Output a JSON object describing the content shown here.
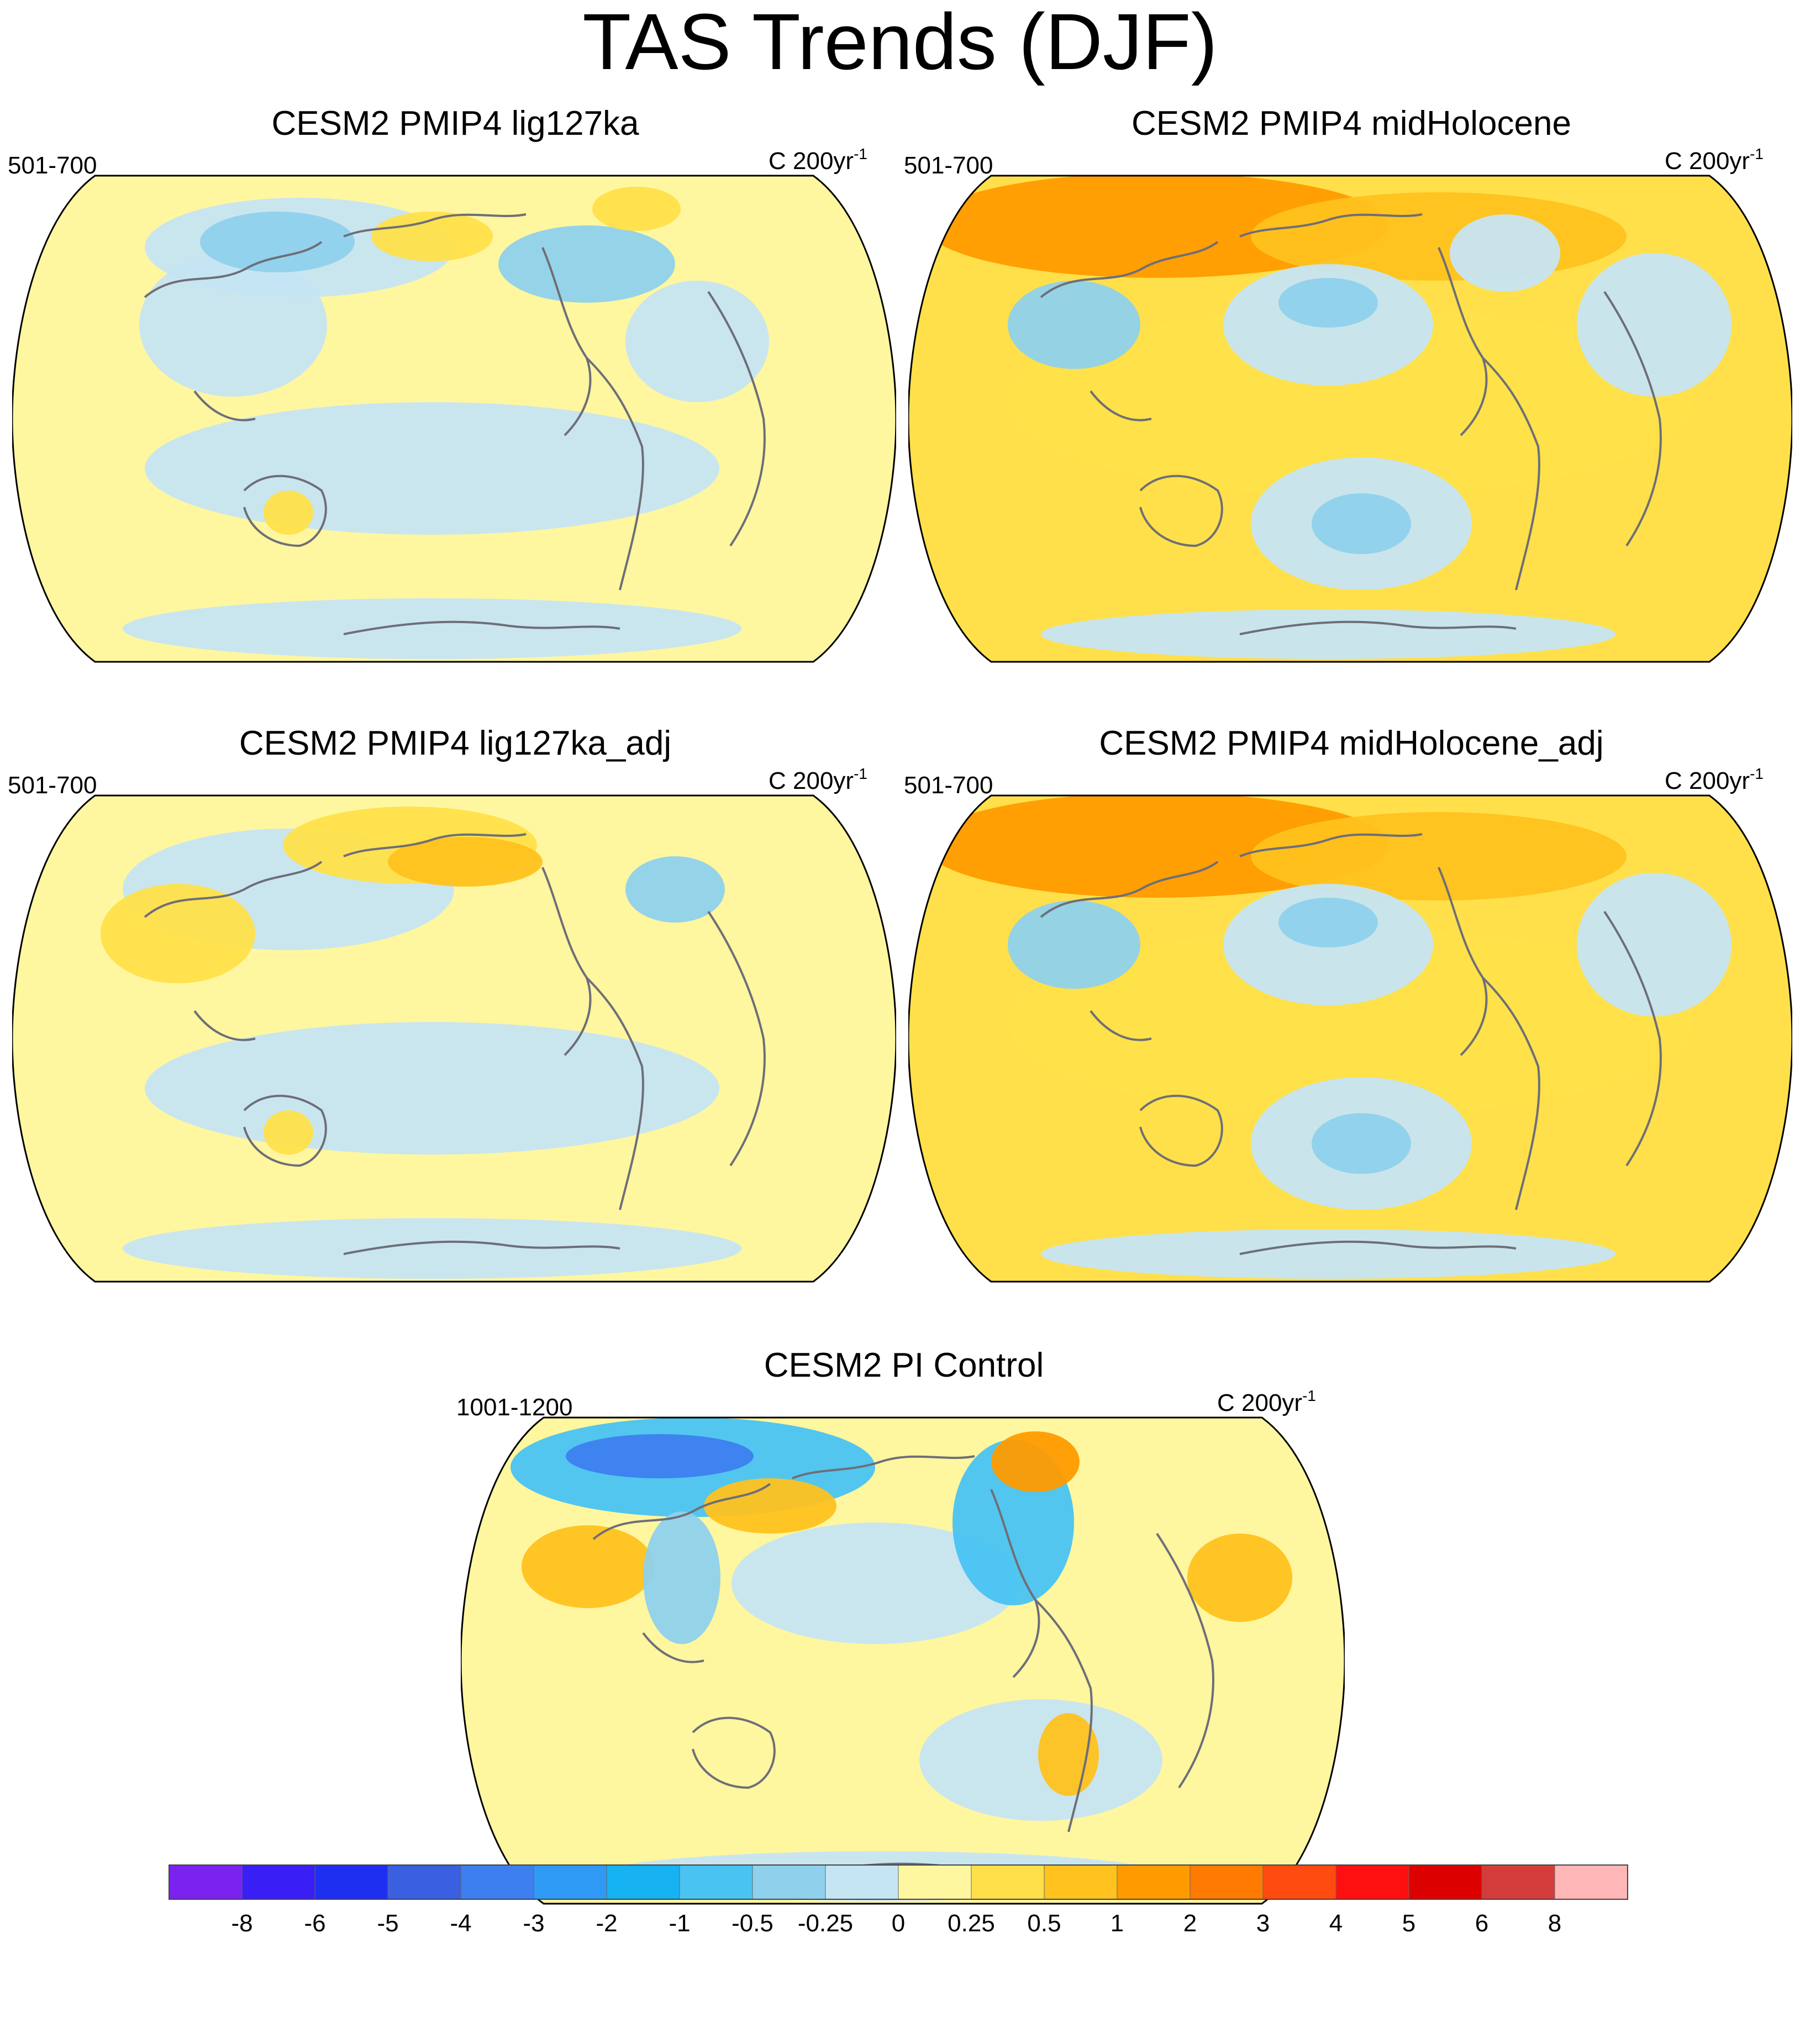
{
  "figure": {
    "title": "TAS Trends (DJF)"
  },
  "panels": [
    {
      "title": "CESM2 PMIP4 lig127ka",
      "period": "501-700",
      "units_prefix": "C 200yr",
      "units_exp": "-1"
    },
    {
      "title": "CESM2 PMIP4 midHolocene",
      "period": "501-700",
      "units_prefix": "C 200yr",
      "units_exp": "-1"
    },
    {
      "title": "CESM2 PMIP4 lig127ka_adj",
      "period": "501-700",
      "units_prefix": "C 200yr",
      "units_exp": "-1"
    },
    {
      "title": "CESM2 PMIP4 midHolocene_adj",
      "period": "501-700",
      "units_prefix": "C 200yr",
      "units_exp": "-1"
    },
    {
      "title": "CESM2 PI Control",
      "period": "1001-1200",
      "units_prefix": "C 200yr",
      "units_exp": "-1"
    }
  ],
  "chart_data": {
    "type": "heatmap",
    "projection": "Robinson-like global map, Pacific-centered",
    "colorbar": {
      "orientation": "horizontal",
      "labels": [
        "-8",
        "-6",
        "-5",
        "-4",
        "-3",
        "-2",
        "-1",
        "-0.5",
        "-0.25",
        "0",
        "0.25",
        "0.5",
        "1",
        "2",
        "3",
        "4",
        "5",
        "6",
        "8"
      ],
      "colors": [
        "#7b22f0",
        "#3a1ef6",
        "#1f2ff2",
        "#3a5fe0",
        "#3d7fee",
        "#2f9af5",
        "#16b2f2",
        "#49c3f2",
        "#8fd1ec",
        "#c6e5f3",
        "#fff6a0",
        "#ffe04a",
        "#ffc21e",
        "#ff9b00",
        "#ff7a00",
        "#ff4a10",
        "#ff1010",
        "#dd0000",
        "#d43c3c",
        "#ffb6b6"
      ]
    },
    "maps": [
      {
        "name": "CESM2 PMIP4 lig127ka",
        "background_level": "0 to 0.25",
        "features": [
          {
            "region": "Arctic Siberia / Alaska",
            "level": "0.5 to 1"
          },
          {
            "region": "North America",
            "level": "-0.5 to -0.25"
          },
          {
            "region": "Central Asia",
            "level": "-0.5 to -0.25"
          },
          {
            "region": "Southern Ocean",
            "level": "-0.25 to 0"
          }
        ]
      },
      {
        "name": "CESM2 PMIP4 midHolocene",
        "background_level": "0.25 to 0.5",
        "features": [
          {
            "region": "Northern Eurasia",
            "level": "1 to 2"
          },
          {
            "region": "North Pacific",
            "level": "-0.5 to -0.25"
          },
          {
            "region": "South Pacific",
            "level": "-1 to -0.5"
          },
          {
            "region": "Tibetan Plateau",
            "level": "-1 to -0.5"
          }
        ]
      },
      {
        "name": "CESM2 PMIP4 lig127ka_adj",
        "background_level": "0 to 0.25",
        "features": [
          {
            "region": "Alaska / Arctic",
            "level": "0.5 to 1"
          },
          {
            "region": "North Atlantic",
            "level": "-0.5 to -0.25"
          },
          {
            "region": "South Pacific",
            "level": "-0.25 to 0"
          }
        ]
      },
      {
        "name": "CESM2 PMIP4 midHolocene_adj",
        "background_level": "0.25 to 0.5",
        "features": [
          {
            "region": "Northern Eurasia",
            "level": "1 to 2"
          },
          {
            "region": "North Pacific",
            "level": "-0.5 to -0.25"
          },
          {
            "region": "South Pacific",
            "level": "-1 to -0.5"
          }
        ]
      },
      {
        "name": "CESM2 PI Control",
        "background_level": "0 to 0.25",
        "features": [
          {
            "region": "Northern Siberia",
            "level": "-1 to -0.5"
          },
          {
            "region": "Alaska",
            "level": "0.5 to 1"
          },
          {
            "region": "Greenland",
            "level": "1 to 2"
          },
          {
            "region": "Eastern North America",
            "level": "-1 to -0.5"
          }
        ]
      }
    ]
  }
}
